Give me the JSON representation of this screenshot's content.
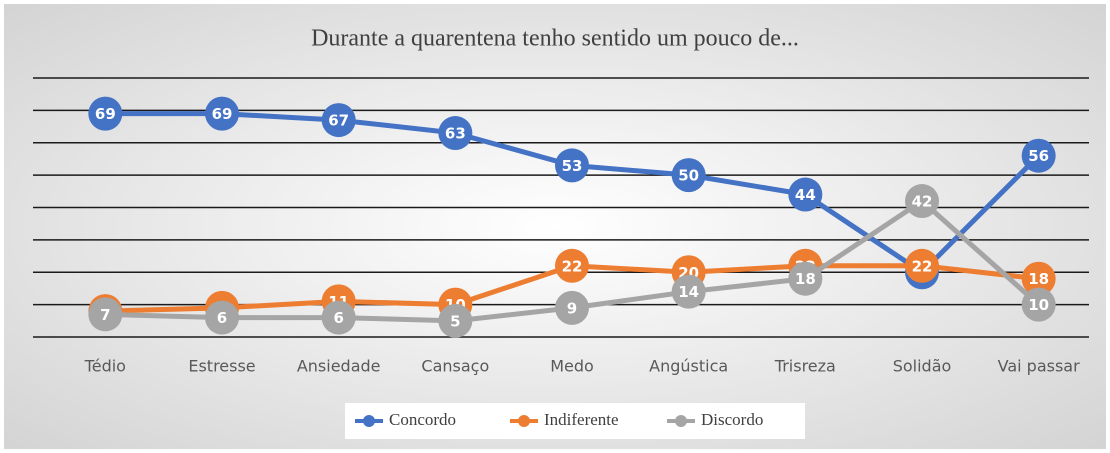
{
  "chart_data": {
    "type": "line",
    "title": "Durante a quarentena tenho sentido um pouco de...",
    "categories": [
      "Tédio",
      "Estresse",
      "Ansiedade",
      "Cansaço",
      "Medo",
      "Angústica",
      "Trisreza",
      "Solidão",
      "Vai passar"
    ],
    "series": [
      {
        "name": "Concordo",
        "color": "#4472c4",
        "values": [
          69,
          69,
          67,
          63,
          53,
          50,
          44,
          20,
          56
        ]
      },
      {
        "name": "Indiferente",
        "color": "#ed7d31",
        "values": [
          8,
          9,
          11,
          10,
          22,
          20,
          22,
          22,
          18
        ]
      },
      {
        "name": "Discordo",
        "color": "#a5a5a5",
        "values": [
          7,
          6,
          6,
          5,
          9,
          14,
          18,
          42,
          10
        ]
      }
    ],
    "ylim": [
      0,
      80
    ],
    "yticks": [
      0,
      10,
      20,
      30,
      40,
      50,
      60,
      70,
      80
    ],
    "grid": true
  }
}
